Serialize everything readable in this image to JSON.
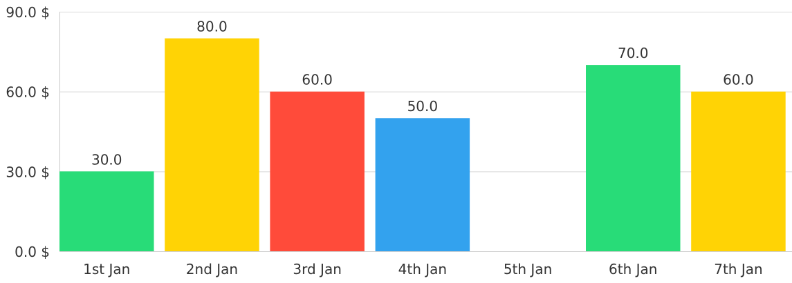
{
  "chart_data": {
    "type": "bar",
    "title": "",
    "xlabel": "",
    "ylabel": "",
    "categories": [
      "1st Jan",
      "2nd Jan",
      "3rd Jan",
      "4th Jan",
      "5th Jan",
      "6th Jan",
      "7th Jan"
    ],
    "values": [
      30.0,
      80.0,
      60.0,
      50.0,
      null,
      70.0,
      60.0
    ],
    "data_labels": [
      "30.0",
      "80.0",
      "60.0",
      "50.0",
      "",
      "70.0",
      "60.0"
    ],
    "colors": [
      "#28DC78",
      "#FFD305",
      "#FF4B3A",
      "#33A2EE",
      "#28DC78",
      "#28DC78",
      "#FFD305"
    ],
    "ylim": [
      0,
      90
    ],
    "yticks": [
      0,
      30,
      60,
      90
    ],
    "ytick_labels": [
      "0.0 $",
      "30.0 $",
      "60.0 $",
      "90.0 $"
    ],
    "grid": true,
    "legend": "none"
  }
}
